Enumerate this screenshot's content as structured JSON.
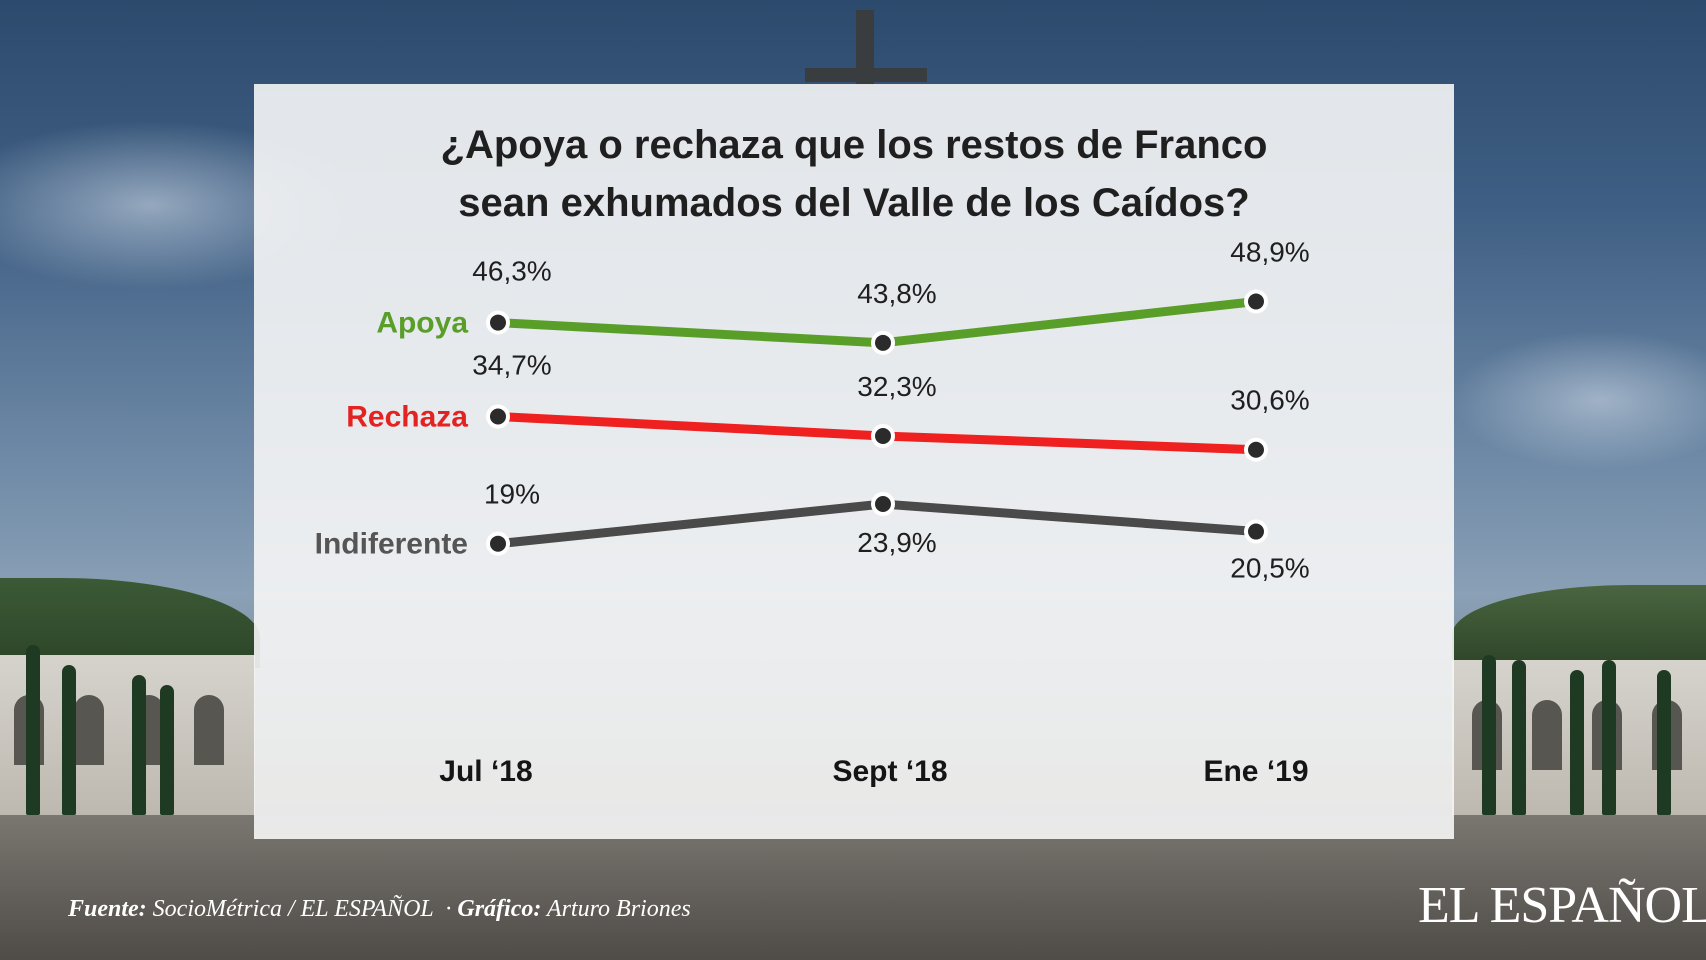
{
  "chart_data": {
    "type": "line",
    "title_line1": "¿Apoya o rechaza que los restos de Franco",
    "title_line2": "sean exhumados del Valle de los Caídos?",
    "categories": [
      "Jul ‘18",
      "Sept ‘18",
      "Ene ‘19"
    ],
    "unit": "%",
    "series": [
      {
        "name": "Apoya",
        "color": "#5a9e2a",
        "label_color": "#5a9e2a",
        "values": [
          46.3,
          43.8,
          48.9
        ],
        "labels": [
          "46,3%",
          "43,8%",
          "48,9%"
        ]
      },
      {
        "name": "Rechaza",
        "color": "#ee2020",
        "label_color": "#e32222",
        "values": [
          34.7,
          32.3,
          30.6
        ],
        "labels": [
          "34,7%",
          "32,3%",
          "30,6%"
        ]
      },
      {
        "name": "Indiferente",
        "color": "#4a4a4a",
        "label_color": "#555555",
        "values": [
          19,
          23.9,
          20.5
        ],
        "labels": [
          "19%",
          "23,9%",
          "20,5%"
        ]
      }
    ],
    "grid": false,
    "legend": "left"
  },
  "footer": {
    "source_label": "Fuente:",
    "source_text": "SocioMétrica / EL ESPAÑOL",
    "separator": "·",
    "graphic_label": "Gráfico:",
    "graphic_text": "Arturo Briones"
  },
  "brand": {
    "logo_text": "EL ESPAÑOL"
  }
}
